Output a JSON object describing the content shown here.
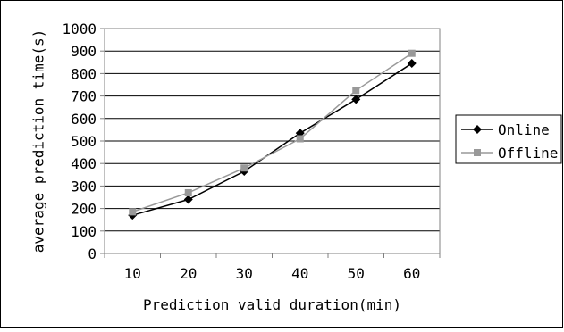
{
  "chart_data": {
    "type": "line",
    "title": "",
    "xlabel": "Prediction valid duration(min)",
    "ylabel": "average prediction time(s)",
    "categories": [
      "10",
      "20",
      "30",
      "40",
      "50",
      "60"
    ],
    "ylim": [
      0,
      1000
    ],
    "yticks": [
      "0",
      "100",
      "200",
      "300",
      "400",
      "500",
      "600",
      "700",
      "800",
      "900",
      "1000"
    ],
    "grid": true,
    "legend_position": "right",
    "series": [
      {
        "name": "Online",
        "values": [
          170,
          240,
          365,
          535,
          685,
          845
        ],
        "color": "#000000",
        "marker": "diamond"
      },
      {
        "name": "Offline",
        "values": [
          185,
          270,
          380,
          510,
          725,
          890
        ],
        "color": "#999999",
        "marker": "square"
      }
    ]
  }
}
